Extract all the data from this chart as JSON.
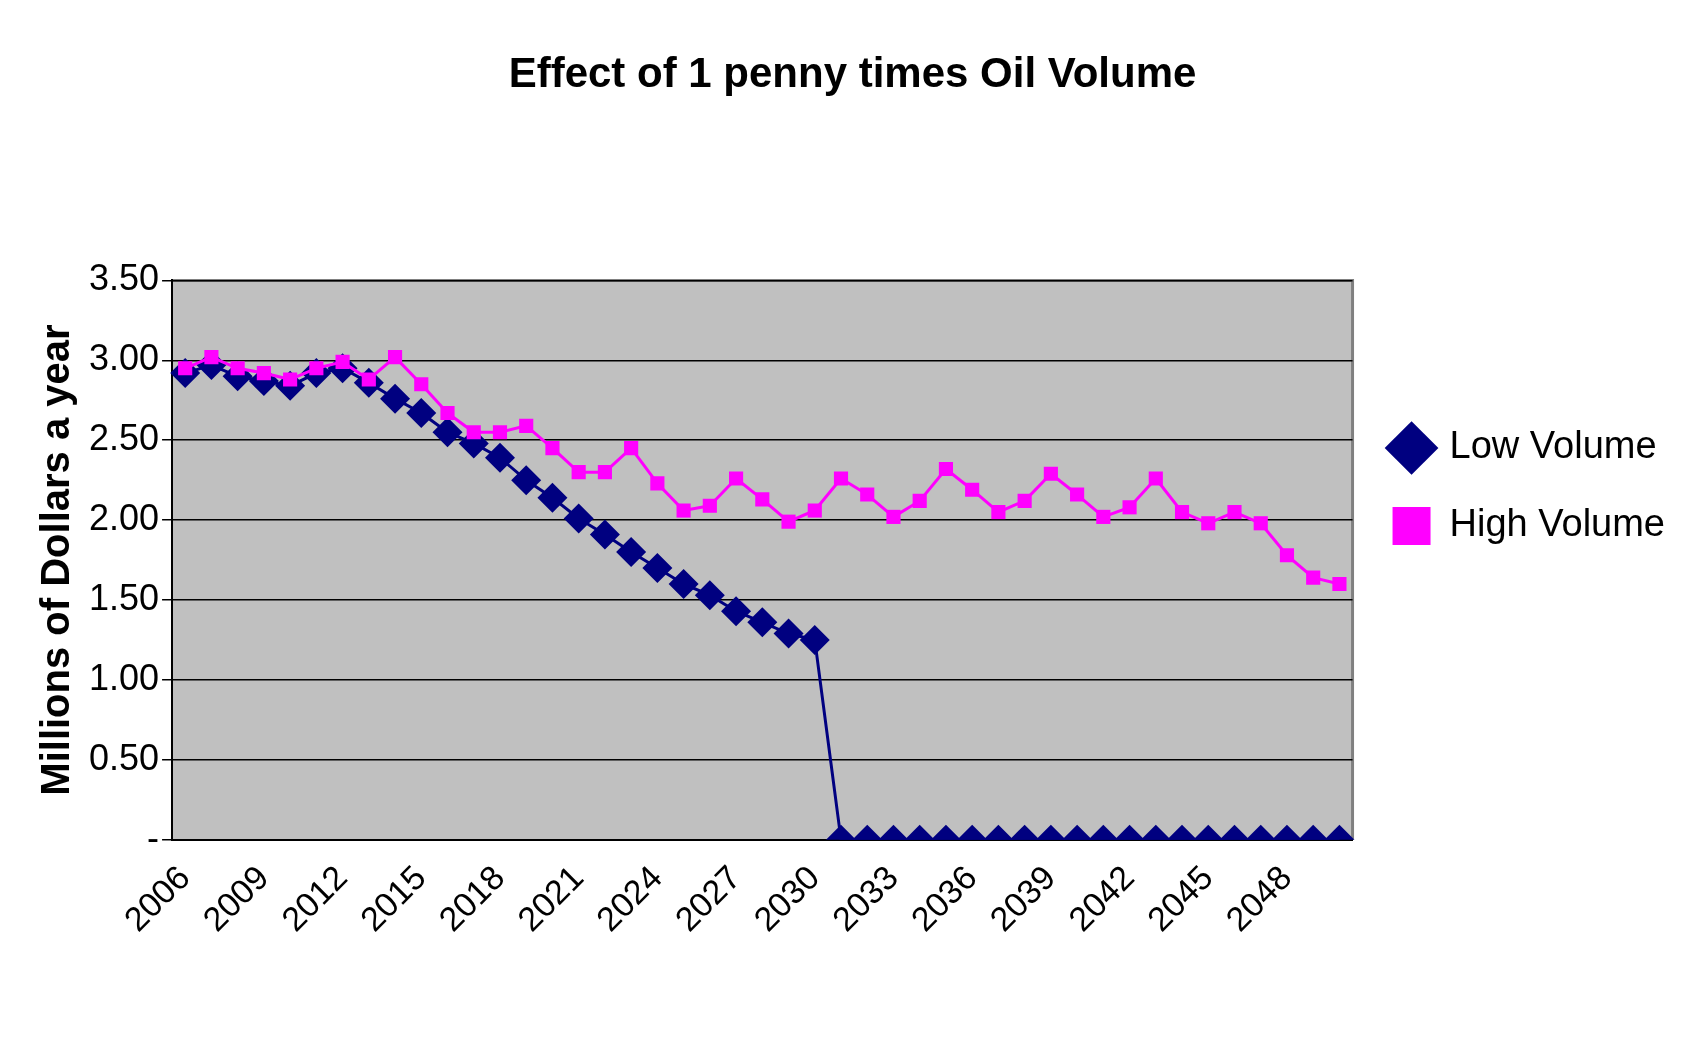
{
  "chart_data": {
    "type": "line",
    "title": "Effect of 1 penny times Oil Volume",
    "ylabel": "Millions of Dollars a year",
    "categories": [
      "2006",
      null,
      null,
      "2009",
      null,
      null,
      "2012",
      null,
      null,
      "2015",
      null,
      null,
      "2018",
      null,
      null,
      "2021",
      null,
      null,
      "2024",
      null,
      null,
      "2027",
      null,
      null,
      "2030",
      null,
      null,
      "2033",
      null,
      null,
      "2036",
      null,
      null,
      "2039",
      null,
      null,
      "2042",
      null,
      null,
      "2045",
      null,
      null,
      "2048",
      null,
      null
    ],
    "series": [
      {
        "name": "Low Volume",
        "color": "#000080",
        "marker": "diamond",
        "values": [
          2.92,
          2.97,
          2.9,
          2.87,
          2.84,
          2.92,
          2.95,
          2.86,
          2.76,
          2.67,
          2.55,
          2.48,
          2.39,
          2.25,
          2.14,
          2.01,
          1.91,
          1.8,
          1.7,
          1.6,
          1.53,
          1.43,
          1.36,
          1.29,
          1.25,
          0,
          0,
          0,
          0,
          0,
          0,
          0,
          0,
          0,
          0,
          0,
          0,
          0,
          0,
          0,
          0,
          0,
          0,
          0,
          0
        ]
      },
      {
        "name": "High Volume",
        "color": "#ff00ff",
        "marker": "square",
        "values": [
          2.95,
          3.02,
          2.95,
          2.92,
          2.88,
          2.95,
          2.99,
          2.88,
          3.02,
          2.85,
          2.67,
          2.55,
          2.55,
          2.59,
          2.45,
          2.3,
          2.3,
          2.45,
          2.23,
          2.06,
          2.09,
          2.26,
          2.13,
          1.99,
          2.06,
          2.26,
          2.16,
          2.02,
          2.12,
          2.32,
          2.19,
          2.05,
          2.12,
          2.29,
          2.16,
          2.02,
          2.08,
          2.26,
          2.05,
          1.98,
          2.05,
          1.98,
          1.78,
          1.64,
          1.6
        ]
      }
    ],
    "ylim": [
      0,
      3.5
    ],
    "yticks": [
      {
        "value": 0,
        "label": "-"
      },
      {
        "value": 0.5,
        "label": "0.50"
      },
      {
        "value": 1,
        "label": "1.00"
      },
      {
        "value": 1.5,
        "label": "1.50"
      },
      {
        "value": 2,
        "label": "2.00"
      },
      {
        "value": 2.5,
        "label": "2.50"
      },
      {
        "value": 3,
        "label": "3.00"
      },
      {
        "value": 3.5,
        "label": "3.50"
      }
    ],
    "grid": "y",
    "legend": "right"
  }
}
